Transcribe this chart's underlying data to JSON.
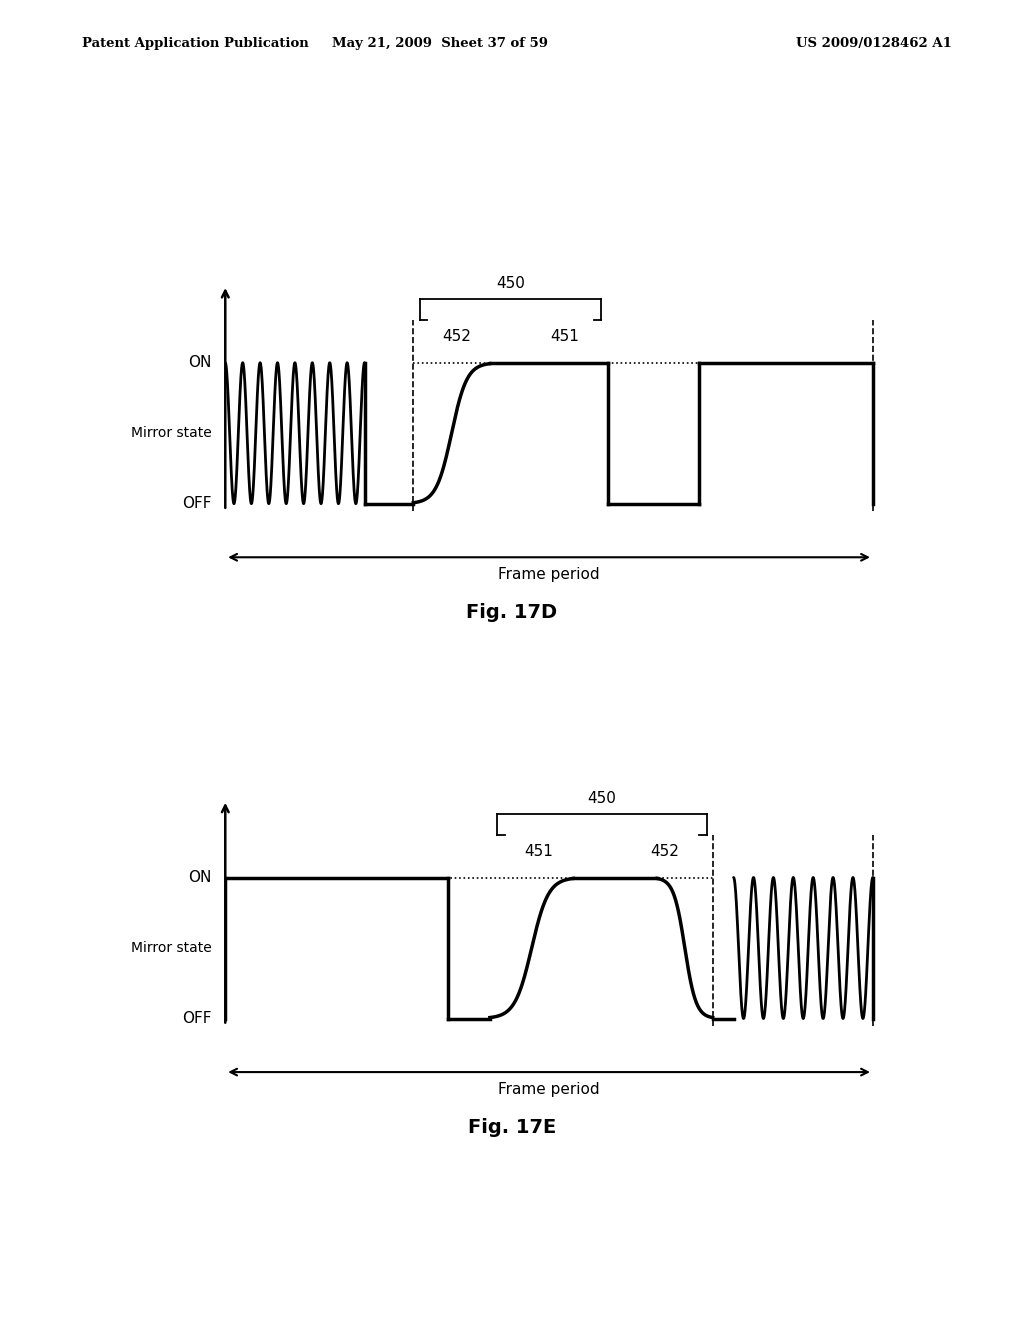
{
  "bg_color": "#ffffff",
  "text_color": "#000000",
  "header_left": "Patent Application Publication",
  "header_center": "May 21, 2009  Sheet 37 of 59",
  "header_right": "US 2009/0128462 A1",
  "fig17d_title": "Fig. 17D",
  "fig17e_title": "Fig. 17E",
  "on_label": "ON",
  "off_label": "OFF",
  "mirror_state_label": "Mirror state",
  "frame_period_label": "Frame period",
  "label_450": "450",
  "label_452_17d": "452",
  "label_451_17d": "451",
  "label_451_17e": "451",
  "label_452_17e": "452"
}
